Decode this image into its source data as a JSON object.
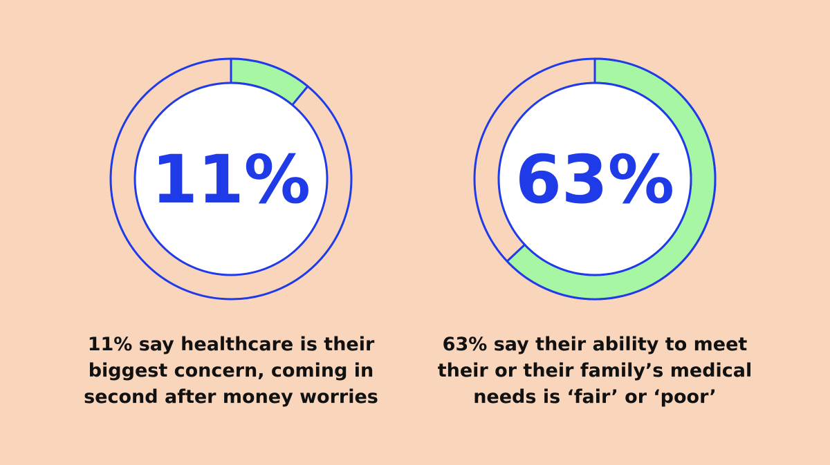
{
  "colors": {
    "background": "#F9D5BC",
    "ring": "#1F3BE8",
    "fill": "#A6F6A3",
    "inner": "#FFFFFF",
    "text": "#111111"
  },
  "chart_data": [
    {
      "type": "pie",
      "style": "donut",
      "value_percent": 11,
      "center_label": "11%",
      "caption_lines": [
        "11% say healthcare is their",
        "biggest concern, coming in",
        "second after money worries"
      ]
    },
    {
      "type": "pie",
      "style": "donut",
      "value_percent": 63,
      "center_label": "63%",
      "caption_lines": [
        "63% say their ability to meet",
        "their or their family’s medical",
        "needs is ‘fair’ or ‘poor’"
      ]
    }
  ]
}
